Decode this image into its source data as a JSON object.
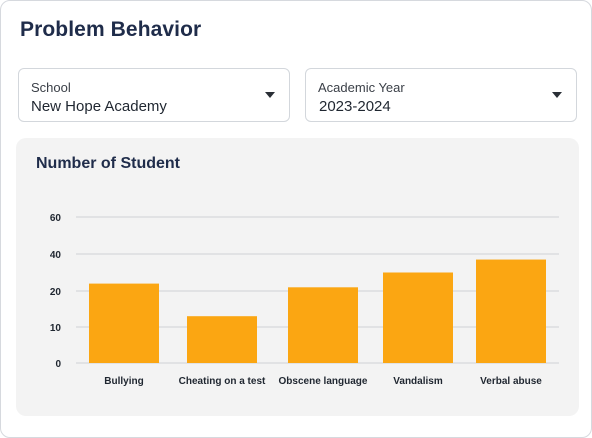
{
  "page": {
    "title": "Problem Behavior"
  },
  "filters": {
    "school": {
      "label": "School",
      "value": "New Hope Academy"
    },
    "academic_year": {
      "label": "Academic Year",
      "value": "2023-2024"
    }
  },
  "colors": {
    "bar": "#FBA612",
    "grid": "#cfd2d6",
    "title": "#1f2c4a"
  },
  "chart_data": {
    "type": "bar",
    "title": "Number of Student",
    "categories": [
      "Bullying",
      "Cheating on a test",
      "Obscene language",
      "Vandalism",
      "Verbal abuse"
    ],
    "values": [
      24,
      13,
      22,
      30,
      37
    ],
    "y_ticks": [
      "0",
      "10",
      "20",
      "40",
      "60"
    ],
    "xlabel": "",
    "ylabel": "",
    "grid": true,
    "legend": "none"
  }
}
